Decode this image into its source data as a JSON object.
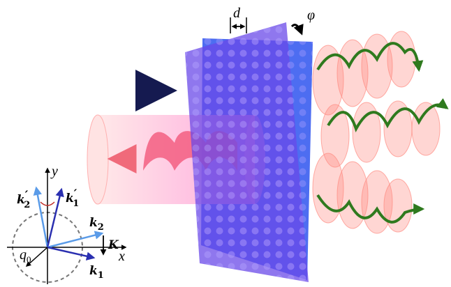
{
  "labels": {
    "d": "d",
    "phi": "φ",
    "x_axis": "x",
    "y_axis": "y",
    "k2_prime": {
      "base": "k",
      "prime": "′",
      "sub": "2"
    },
    "k1_prime": {
      "base": "k",
      "prime": "′",
      "sub": "1"
    },
    "k2": {
      "base": "k",
      "sub": "2"
    },
    "k1": {
      "base": "k",
      "sub": "1"
    },
    "K": "K",
    "q0": {
      "base": "q",
      "sub": "0"
    }
  }
}
